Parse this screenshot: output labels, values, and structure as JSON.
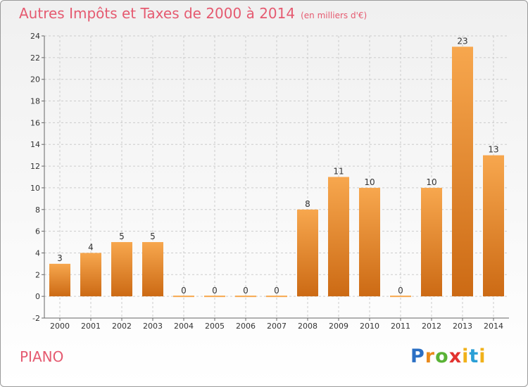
{
  "title": "Autres Impôts et Taxes de 2000 à 2014",
  "unit": "(en milliers d'€)",
  "place": "PIANO",
  "logo": {
    "p": "P",
    "r": "r",
    "o": "o",
    "x": "x",
    "i1": "i",
    "t": "t",
    "i2": "i"
  },
  "colors": {
    "bar_light": "#f7a74e",
    "bar_dark": "#cc6a14",
    "title": "#e55a70",
    "grid": "#cccccc"
  },
  "chart_data": {
    "type": "bar",
    "categories": [
      "2000",
      "2001",
      "2002",
      "2003",
      "2004",
      "2005",
      "2006",
      "2007",
      "2008",
      "2009",
      "2010",
      "2011",
      "2012",
      "2013",
      "2014"
    ],
    "values": [
      3,
      4,
      5,
      5,
      0,
      0,
      0,
      0,
      8,
      11,
      10,
      0,
      10,
      23,
      13
    ],
    "value_labels": [
      "3",
      "4",
      "5",
      "5",
      "0",
      "0",
      "0",
      "0",
      "8",
      "11",
      "10",
      "0",
      "10",
      "23",
      "13"
    ],
    "y_ticks": [
      -2,
      0,
      2,
      4,
      6,
      8,
      10,
      12,
      14,
      16,
      18,
      20,
      22,
      24
    ],
    "ylim": [
      -2,
      24
    ],
    "grid": true,
    "legend": "none"
  }
}
